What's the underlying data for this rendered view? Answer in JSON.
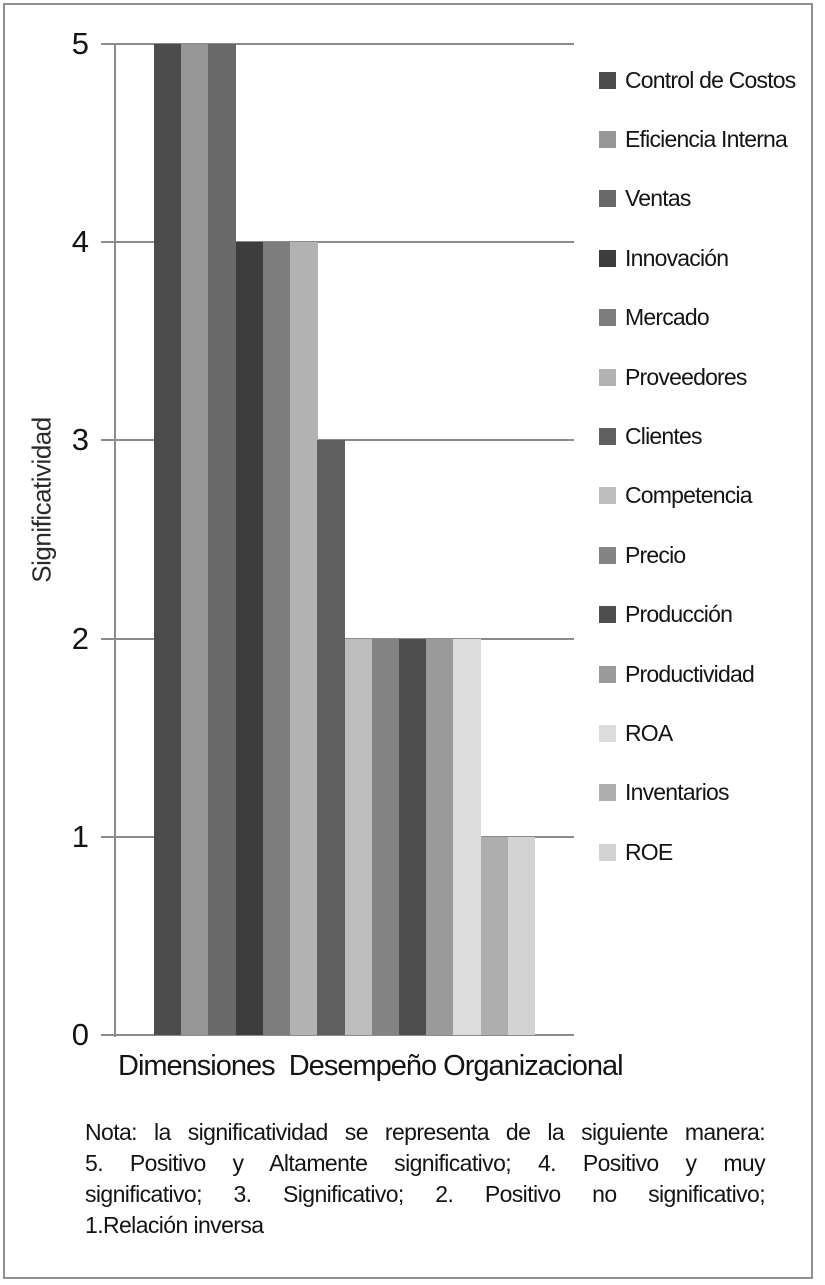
{
  "chart_data": {
    "type": "bar",
    "title": "",
    "xlabel": "Dimensiones  Desempeño Organizacional",
    "ylabel": "Significatividad",
    "ylim": [
      0,
      5
    ],
    "yticks": [
      0,
      1,
      2,
      3,
      4,
      5
    ],
    "grid": true,
    "legend_position": "right",
    "categories": [
      "Dimensiones Desempeño Organizacional"
    ],
    "series": [
      {
        "name": "Control de Costos",
        "value": 5,
        "color": "#4c4c4c"
      },
      {
        "name": "Eficiencia Interna",
        "value": 5,
        "color": "#979797"
      },
      {
        "name": "Ventas",
        "value": 5,
        "color": "#696969"
      },
      {
        "name": "Innovación",
        "value": 4,
        "color": "#3d3d3d"
      },
      {
        "name": "Mercado",
        "value": 4,
        "color": "#7d7d7d"
      },
      {
        "name": "Proveedores",
        "value": 4,
        "color": "#b2b2b2"
      },
      {
        "name": "Clientes",
        "value": 3,
        "color": "#5f5f5f"
      },
      {
        "name": "Competencia",
        "value": 2,
        "color": "#bdbdbd"
      },
      {
        "name": "Precio",
        "value": 2,
        "color": "#848484"
      },
      {
        "name": "Producción",
        "value": 2,
        "color": "#4e4e4e"
      },
      {
        "name": "Productividad",
        "value": 2,
        "color": "#9a9a9a"
      },
      {
        "name": "ROA",
        "value": 2,
        "color": "#dcdcdc"
      },
      {
        "name": "Inventarios",
        "value": 1,
        "color": "#aeaeae"
      },
      {
        "name": "ROE",
        "value": 1,
        "color": "#d3d3d3"
      }
    ]
  },
  "note": {
    "lines": [
      "Nota: la significatividad se representa de la siguiente manera:",
      "5. Positivo y Altamente significativo; 4. Positivo y muy",
      "significativo; 3. Significativo; 2. Positivo no significativo;",
      "1.Relación inversa"
    ]
  },
  "colors": {
    "axis": "#8c8c8c",
    "frame_border": "#8f8f8f",
    "text": "#141414",
    "background": "#ffffff"
  }
}
